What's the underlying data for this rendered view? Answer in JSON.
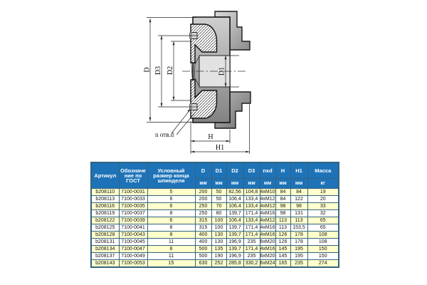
{
  "drawing": {
    "labels": {
      "D": "D",
      "D3": "D3",
      "D2": "D2",
      "D1": "D1",
      "H": "H",
      "H1": "H1",
      "holes_note": "n отв.d"
    }
  },
  "table": {
    "columns": [
      {
        "label": "Артикул",
        "unit": ""
      },
      {
        "label": "Обозначение по ГОСТ",
        "unit": ""
      },
      {
        "label": "Условный размер конца шпинделя",
        "unit": ""
      },
      {
        "label": "D",
        "unit": "мм"
      },
      {
        "label": "D1",
        "unit": "мм"
      },
      {
        "label": "D2",
        "unit": "мм"
      },
      {
        "label": "D3",
        "unit": "мм"
      },
      {
        "label": "nxd",
        "unit": "мм"
      },
      {
        "label": "H",
        "unit": "мм"
      },
      {
        "label": "H1",
        "unit": "мм"
      },
      {
        "label": "Масса",
        "unit": "кг"
      }
    ],
    "rows": [
      [
        "b208110",
        "7100-0031",
        "5",
        "200",
        "50",
        "82,56",
        "104,8",
        "4xM10",
        "84",
        "84",
        "19"
      ],
      [
        "b208113",
        "7100-0033",
        "6",
        "200",
        "50",
        "106,4",
        "133,4",
        "4xM12",
        "84",
        "122",
        "20"
      ],
      [
        "b208116",
        "7100-0035",
        "6",
        "250",
        "70",
        "106,4",
        "133,4",
        "4xM12",
        "98",
        "98",
        "33"
      ],
      [
        "b208119",
        "7100-0037",
        "8",
        "250",
        "80",
        "139,7",
        "171,4",
        "4xM16",
        "98",
        "131",
        "32"
      ],
      [
        "b208122",
        "7100-0039",
        "6",
        "315",
        "100",
        "106,4",
        "133,4",
        "4xM12",
        "113",
        "113",
        "65"
      ],
      [
        "b208125",
        "7100-0041",
        "8",
        "315",
        "100",
        "139,7",
        "171,4",
        "4xM16",
        "113",
        "153,5",
        "65"
      ],
      [
        "b208128",
        "7100-0043",
        "8",
        "400",
        "130",
        "139,7",
        "171,4",
        "4xM16",
        "126",
        "178",
        "108"
      ],
      [
        "b208131",
        "7100-0045",
        "11",
        "400",
        "130",
        "196,9",
        "235",
        "6xM20",
        "126",
        "178",
        "108"
      ],
      [
        "b208134",
        "7100-0047",
        "8",
        "500",
        "135",
        "139,7",
        "171,4",
        "4xM16",
        "145",
        "195",
        "150"
      ],
      [
        "b208137",
        "7100-0049",
        "11",
        "500",
        "190",
        "196,9",
        "235",
        "6xM20",
        "145",
        "195",
        "150"
      ],
      [
        "b208143",
        "7100-0053",
        "15",
        "630",
        "252",
        "285,8",
        "330,2",
        "6xM24",
        "165",
        "235",
        "274"
      ]
    ]
  },
  "colors": {
    "header_bg": "#1e73b8",
    "grid": "#33637f",
    "row_alt": "#ffffcc",
    "row": "#ffffff",
    "header_text": "#ffffff"
  }
}
